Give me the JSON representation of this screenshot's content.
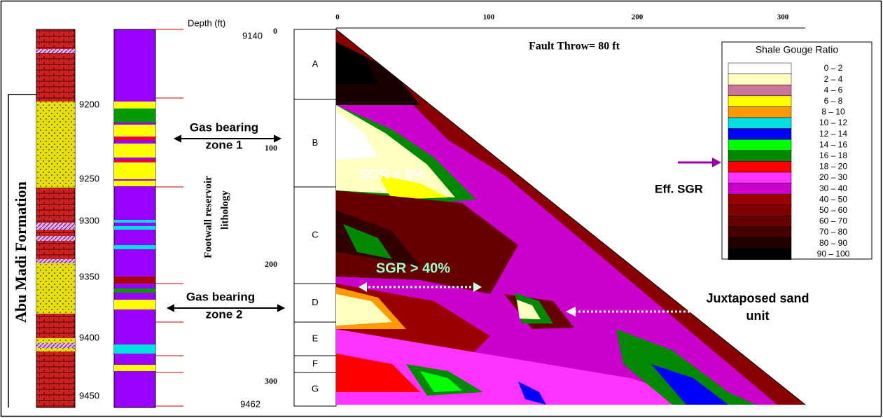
{
  "header": {
    "depth_label": "Depth (ft)",
    "top_depth": "9140",
    "bottom_depth": "9462",
    "fault_throw": "Fault Throw= 80 ft"
  },
  "formation": "Abu  Madi  Formation",
  "depth_ticks_left": [
    "9200",
    "9250",
    "9300",
    "9350",
    "9400",
    "9450"
  ],
  "throw_axis": [
    "0",
    "100",
    "200",
    "300"
  ],
  "top_axis": [
    "0",
    "100",
    "200",
    "300"
  ],
  "zones": [
    "A",
    "B",
    "C",
    "D",
    "E",
    "F",
    "G"
  ],
  "annotations": {
    "gas_zone_1": [
      "Gas bearing",
      "zone 1"
    ],
    "gas_zone_2": [
      "Gas bearing",
      "zone 2"
    ],
    "sgr_low": "SGR < 8%",
    "sgr_high": "SGR > 40%",
    "juxtaposed": [
      "Juxtaposed sand",
      "unit"
    ],
    "eff_sgr": "Eff. SGR",
    "footwall": [
      "Footwall reservoir",
      "lithology"
    ]
  },
  "legend": {
    "title": "Shale Gouge Ratio",
    "items": [
      {
        "label": "0 – 2",
        "color": "#ffffff"
      },
      {
        "label": "2 – 4",
        "color": "#ffffc0"
      },
      {
        "label": "4 – 6",
        "color": "#cc7799"
      },
      {
        "label": "6 – 8",
        "color": "#ffff00"
      },
      {
        "label": "8 – 10",
        "color": "#ff9900"
      },
      {
        "label": "10 – 12",
        "color": "#00e0e0"
      },
      {
        "label": "12 – 14",
        "color": "#0000ff"
      },
      {
        "label": "14 – 16",
        "color": "#00ff00"
      },
      {
        "label": "16 – 18",
        "color": "#008800"
      },
      {
        "label": "18 – 20",
        "color": "#ff0000"
      },
      {
        "label": "20 – 30",
        "color": "#ff33ff"
      },
      {
        "label": "30 – 40",
        "color": "#cc00cc"
      },
      {
        "label": "40 – 50",
        "color": "#990000"
      },
      {
        "label": "50 – 60",
        "color": "#800000"
      },
      {
        "label": "60 – 70",
        "color": "#660000"
      },
      {
        "label": "70 – 80",
        "color": "#440000"
      },
      {
        "label": "80 – 90",
        "color": "#220000"
      },
      {
        "label": "90 – 100",
        "color": "#000000"
      }
    ]
  }
}
